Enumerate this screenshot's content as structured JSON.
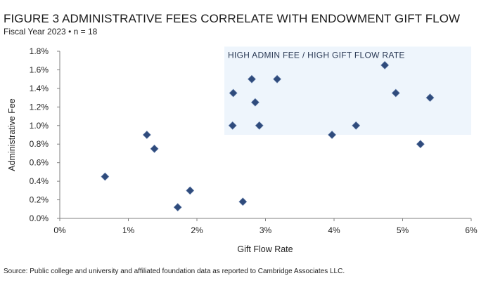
{
  "title": "FIGURE 3   ADMINISTRATIVE FEES CORRELATE WITH ENDOWMENT GIFT FLOW",
  "subtitle": "Fiscal Year 2023 • n = 18",
  "source": "Source: Public college and university and affiliated foundation data as reported to Cambridge Associates LLC.",
  "chart_data": {
    "type": "scatter",
    "title": "ADMINISTRATIVE FEES CORRELATE WITH ENDOWMENT GIFT FLOW",
    "xlabel": "Gift Flow Rate",
    "ylabel": "Administrative Fee",
    "xlim": [
      0,
      6
    ],
    "ylim": [
      0,
      1.8
    ],
    "x_ticks": [
      "0%",
      "1%",
      "2%",
      "3%",
      "4%",
      "5%",
      "6%"
    ],
    "y_ticks": [
      "0.0%",
      "0.2%",
      "0.4%",
      "0.6%",
      "0.8%",
      "1.0%",
      "1.2%",
      "1.4%",
      "1.6%",
      "1.8%"
    ],
    "grid": false,
    "marker_color": "#2f4b7c",
    "highlight": {
      "label": "HIGH ADMIN FEE / HIGH GIFT FLOW RATE",
      "x_range": [
        2.4,
        6
      ],
      "y_range": [
        0.9,
        1.85
      ],
      "color": "#eef5fc"
    },
    "points": [
      {
        "x": 0.66,
        "y": 0.45
      },
      {
        "x": 1.27,
        "y": 0.9
      },
      {
        "x": 1.38,
        "y": 0.75
      },
      {
        "x": 1.72,
        "y": 0.12
      },
      {
        "x": 1.9,
        "y": 0.3
      },
      {
        "x": 2.67,
        "y": 0.18
      },
      {
        "x": 2.52,
        "y": 1.0
      },
      {
        "x": 2.53,
        "y": 1.35
      },
      {
        "x": 2.8,
        "y": 1.5
      },
      {
        "x": 2.85,
        "y": 1.25
      },
      {
        "x": 2.91,
        "y": 1.0
      },
      {
        "x": 3.17,
        "y": 1.5
      },
      {
        "x": 3.97,
        "y": 0.9
      },
      {
        "x": 4.32,
        "y": 1.0
      },
      {
        "x": 4.74,
        "y": 1.65
      },
      {
        "x": 4.9,
        "y": 1.35
      },
      {
        "x": 5.26,
        "y": 0.8
      },
      {
        "x": 5.4,
        "y": 1.3
      }
    ]
  }
}
